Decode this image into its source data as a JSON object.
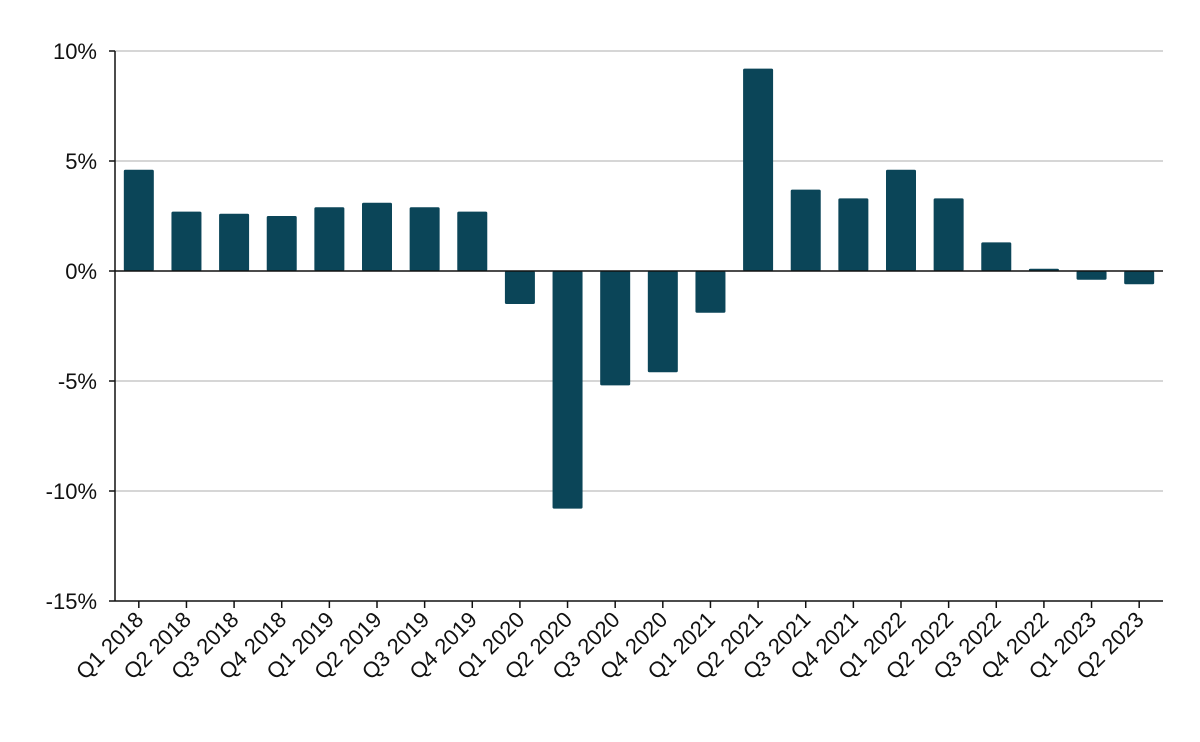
{
  "chart_data": {
    "type": "bar",
    "title": "",
    "xlabel": "",
    "ylabel": "",
    "categories": [
      "Q1 2018",
      "Q2 2018",
      "Q3 2018",
      "Q4 2018",
      "Q1 2019",
      "Q2 2019",
      "Q3 2019",
      "Q4 2019",
      "Q1 2020",
      "Q2 2020",
      "Q3 2020",
      "Q4 2020",
      "Q1 2021",
      "Q2 2021",
      "Q3 2021",
      "Q4 2021",
      "Q1 2022",
      "Q2 2022",
      "Q3 2022",
      "Q4 2022",
      "Q1 2023",
      "Q2 2023"
    ],
    "values": [
      4.6,
      2.7,
      2.6,
      2.5,
      2.9,
      3.1,
      2.9,
      2.7,
      -1.5,
      -10.8,
      -5.2,
      -4.6,
      -1.9,
      9.2,
      3.7,
      3.3,
      4.6,
      3.3,
      1.3,
      0.1,
      -0.4,
      -0.6
    ],
    "ylim": [
      -15,
      10
    ],
    "yticks": [
      10,
      5,
      0,
      -5,
      -10,
      -15
    ],
    "ytick_labels": [
      "10%",
      "5%",
      "0%",
      "-5%",
      "-10%",
      "-15%"
    ],
    "grid": true,
    "colors": {
      "bar": "#0b4558",
      "grid": "#c8c8c8",
      "axis": "#111111"
    }
  }
}
